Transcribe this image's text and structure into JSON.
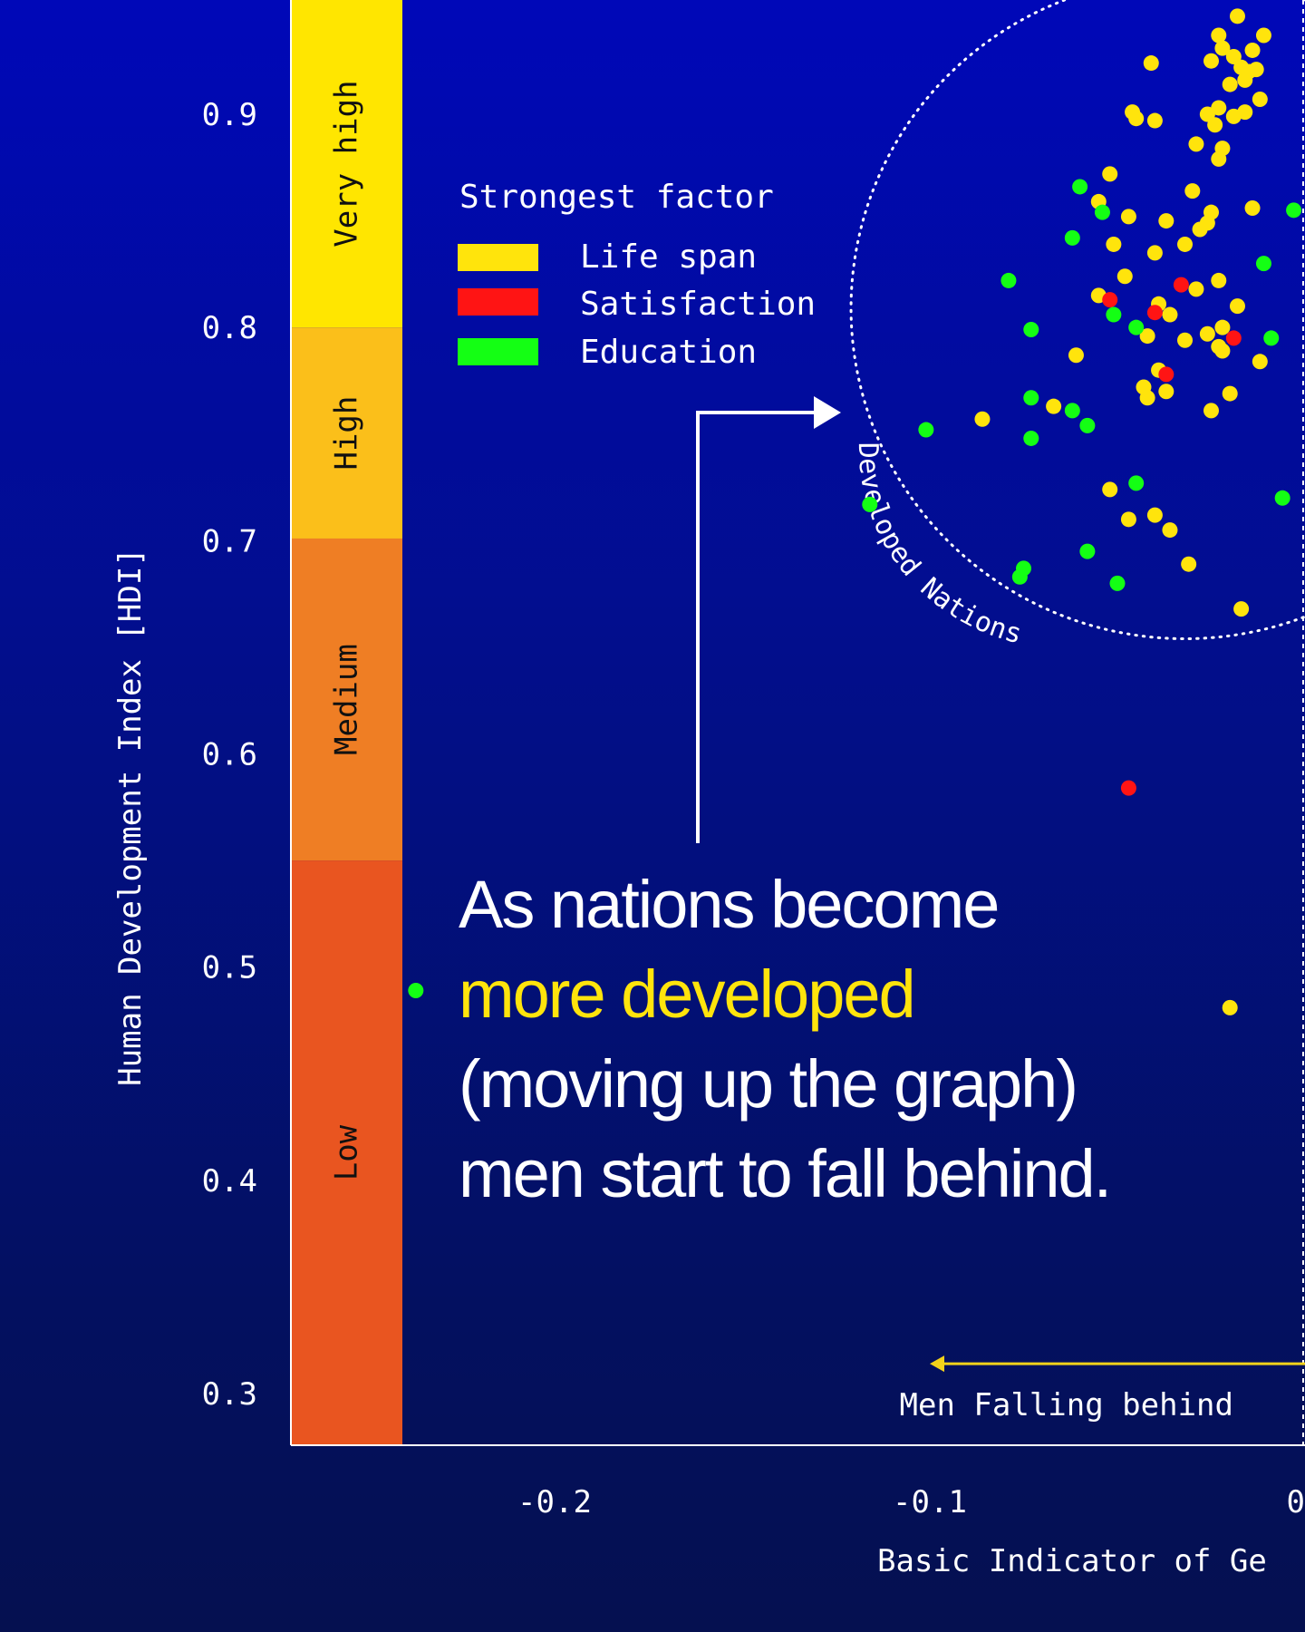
{
  "headline": {
    "line1": "As nations become",
    "line2": "more developed",
    "line3": "(moving up the graph)",
    "line4": "men start to fall behind."
  },
  "colors": {
    "life_span": "#ffe40c",
    "satisfaction": "#ff1414",
    "education": "#14ff14",
    "band_very_high": "#ffe600",
    "band_high": "#fbbf1a",
    "band_medium": "#ef7e24",
    "band_low": "#e95520",
    "accent_arrow": "#f3d21a"
  },
  "chart_data": {
    "type": "scatter",
    "title": "",
    "xlabel": "Basic Indicator of Ge",
    "ylabel": "Human Development Index [HDI]",
    "xlim": [
      -0.27,
      0.008
    ],
    "ylim": [
      0.275,
      0.955
    ],
    "x_ticks": [
      -0.2,
      -0.1,
      0
    ],
    "x_tick_labels": [
      "-0.2",
      "-0.1",
      "0."
    ],
    "y_ticks": [
      0.9,
      0.8,
      0.7,
      0.6,
      0.5,
      0.4,
      0.3
    ],
    "y_tick_labels": [
      "0.9",
      "0.8",
      "0.7",
      "0.6",
      "0.5",
      "0.4",
      "0.3"
    ],
    "hdi_bands": [
      {
        "label": "Very high",
        "from": 0.8,
        "to": 0.955,
        "color": "#ffe600"
      },
      {
        "label": "High",
        "from": 0.701,
        "to": 0.8,
        "color": "#fbbf1a"
      },
      {
        "label": "Medium",
        "from": 0.55,
        "to": 0.701,
        "color": "#ef7e24"
      },
      {
        "label": "Low",
        "from": 0.275,
        "to": 0.55,
        "color": "#e95520"
      }
    ],
    "legend": {
      "title": "Strongest factor",
      "items": [
        {
          "label": "Life span",
          "color": "#ffe40c"
        },
        {
          "label": "Satisfaction",
          "color": "#ff1414"
        },
        {
          "label": "Education",
          "color": "#14ff14"
        }
      ]
    },
    "cluster_label": "Developed Nations",
    "cluster": {
      "cx": -0.032,
      "cy": 0.809,
      "rx": 0.089,
      "ry": 0.155
    },
    "zero_line_x": 0.0,
    "arrow_label": "Men Falling behind",
    "arrow": {
      "x_from": 0.0,
      "x_to": -0.1,
      "y": 0.314
    },
    "series": [
      {
        "name": "Life span",
        "color": "#ffe40c",
        "points": [
          [
            -0.018,
            0.946
          ],
          [
            -0.023,
            0.937
          ],
          [
            -0.011,
            0.937
          ],
          [
            -0.022,
            0.931
          ],
          [
            -0.014,
            0.93
          ],
          [
            -0.019,
            0.927
          ],
          [
            -0.017,
            0.922
          ],
          [
            -0.013,
            0.921
          ],
          [
            -0.016,
            0.916
          ],
          [
            -0.02,
            0.914
          ],
          [
            -0.025,
            0.925
          ],
          [
            -0.015,
            0.92
          ],
          [
            -0.041,
            0.924
          ],
          [
            -0.012,
            0.907
          ],
          [
            -0.046,
            0.901
          ],
          [
            -0.045,
            0.898
          ],
          [
            -0.023,
            0.903
          ],
          [
            -0.016,
            0.901
          ],
          [
            -0.04,
            0.897
          ],
          [
            -0.026,
            0.9
          ],
          [
            -0.019,
            0.899
          ],
          [
            -0.024,
            0.895
          ],
          [
            -0.029,
            0.886
          ],
          [
            -0.022,
            0.884
          ],
          [
            -0.023,
            0.879
          ],
          [
            -0.052,
            0.872
          ],
          [
            -0.03,
            0.864
          ],
          [
            -0.055,
            0.859
          ],
          [
            -0.025,
            0.854
          ],
          [
            -0.014,
            0.856
          ],
          [
            -0.047,
            0.852
          ],
          [
            -0.037,
            0.85
          ],
          [
            -0.028,
            0.846
          ],
          [
            -0.051,
            0.839
          ],
          [
            -0.032,
            0.839
          ],
          [
            -0.026,
            0.849
          ],
          [
            -0.04,
            0.835
          ],
          [
            -0.023,
            0.822
          ],
          [
            -0.048,
            0.824
          ],
          [
            -0.029,
            0.818
          ],
          [
            -0.055,
            0.815
          ],
          [
            -0.039,
            0.811
          ],
          [
            -0.018,
            0.81
          ],
          [
            -0.036,
            0.806
          ],
          [
            -0.022,
            0.8
          ],
          [
            -0.026,
            0.797
          ],
          [
            -0.032,
            0.794
          ],
          [
            -0.042,
            0.796
          ],
          [
            -0.061,
            0.787
          ],
          [
            -0.022,
            0.789
          ],
          [
            -0.023,
            0.791
          ],
          [
            -0.039,
            0.78
          ],
          [
            -0.012,
            0.784
          ],
          [
            -0.043,
            0.772
          ],
          [
            -0.037,
            0.77
          ],
          [
            -0.02,
            0.769
          ],
          [
            -0.042,
            0.767
          ],
          [
            -0.067,
            0.763
          ],
          [
            -0.025,
            0.761
          ],
          [
            -0.086,
            0.757
          ],
          [
            -0.052,
            0.724
          ],
          [
            -0.047,
            0.71
          ],
          [
            -0.036,
            0.705
          ],
          [
            -0.04,
            0.712
          ],
          [
            -0.031,
            0.689
          ],
          [
            -0.017,
            0.668
          ],
          [
            -0.02,
            0.481
          ]
        ]
      },
      {
        "name": "Satisfaction",
        "color": "#ff1414",
        "points": [
          [
            -0.033,
            0.82
          ],
          [
            -0.052,
            0.813
          ],
          [
            -0.04,
            0.807
          ],
          [
            -0.019,
            0.795
          ],
          [
            -0.037,
            0.778
          ],
          [
            -0.047,
            0.584
          ]
        ]
      },
      {
        "name": "Education",
        "color": "#14ff14",
        "points": [
          [
            -0.06,
            0.866
          ],
          [
            -0.054,
            0.854
          ],
          [
            -0.062,
            0.842
          ],
          [
            -0.003,
            0.855
          ],
          [
            -0.011,
            0.83
          ],
          [
            -0.079,
            0.822
          ],
          [
            -0.051,
            0.806
          ],
          [
            -0.045,
            0.8
          ],
          [
            -0.073,
            0.799
          ],
          [
            -0.009,
            0.795
          ],
          [
            -0.073,
            0.767
          ],
          [
            -0.062,
            0.761
          ],
          [
            -0.058,
            0.754
          ],
          [
            -0.101,
            0.752
          ],
          [
            -0.073,
            0.748
          ],
          [
            -0.045,
            0.727
          ],
          [
            -0.006,
            0.72
          ],
          [
            -0.116,
            0.717
          ],
          [
            -0.058,
            0.695
          ],
          [
            -0.075,
            0.687
          ],
          [
            -0.076,
            0.683
          ],
          [
            -0.05,
            0.68
          ],
          [
            -0.237,
            0.489
          ]
        ]
      }
    ]
  }
}
